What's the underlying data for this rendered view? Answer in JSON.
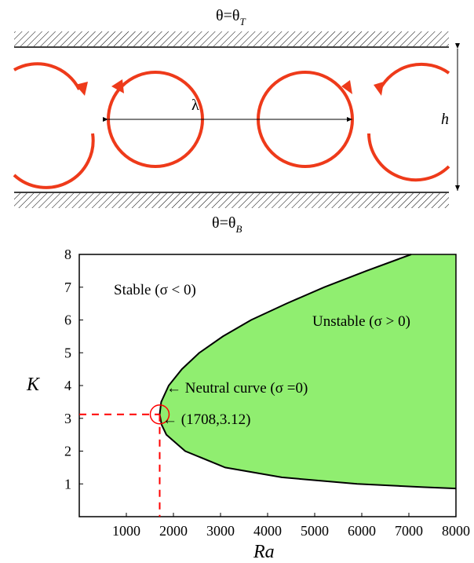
{
  "convection": {
    "top_label_base": "θ=θ",
    "top_label_sub": "T",
    "bottom_label_base": "θ=θ",
    "bottom_label_sub": "B",
    "wavelength_label": "λ",
    "height_label": "h",
    "roll_color": "#ee3a1a"
  },
  "chart_data": {
    "type": "area",
    "xlabel": "Ra",
    "ylabel": "K",
    "xlim": [
      0,
      8000
    ],
    "ylim": [
      0,
      8
    ],
    "x_ticks": [
      "1000",
      "2000",
      "3000",
      "4000",
      "5000",
      "6000",
      "7000",
      "8000"
    ],
    "y_ticks": [
      "1",
      "2",
      "3",
      "4",
      "5",
      "6",
      "7",
      "8"
    ],
    "fill_color": "#90ee70",
    "curve_color": "#000000",
    "marker_color": "#ff0000",
    "critical_point": {
      "Ra": 1708,
      "K": 3.12
    },
    "neutral_curve_points": [
      {
        "K": 0.86,
        "Ra": 8000
      },
      {
        "K": 0.9,
        "Ra": 7300
      },
      {
        "K": 1.0,
        "Ra": 5900
      },
      {
        "K": 1.2,
        "Ra": 4300
      },
      {
        "K": 1.5,
        "Ra": 3100
      },
      {
        "K": 2.0,
        "Ra": 2250
      },
      {
        "K": 2.5,
        "Ra": 1850
      },
      {
        "K": 2.8,
        "Ra": 1750
      },
      {
        "K": 3.12,
        "Ra": 1708
      },
      {
        "K": 3.5,
        "Ra": 1740
      },
      {
        "K": 4.0,
        "Ra": 1900
      },
      {
        "K": 4.5,
        "Ra": 2180
      },
      {
        "K": 5.0,
        "Ra": 2550
      },
      {
        "K": 5.5,
        "Ra": 3050
      },
      {
        "K": 6.0,
        "Ra": 3650
      },
      {
        "K": 6.5,
        "Ra": 4400
      },
      {
        "K": 7.0,
        "Ra": 5200
      },
      {
        "K": 7.5,
        "Ra": 6100
      },
      {
        "K": 8.0,
        "Ra": 7050
      }
    ],
    "annotations": {
      "stable": "Stable (σ < 0)",
      "unstable": "Unstable (σ > 0)",
      "neutral": "← Neutral curve (σ =0)",
      "critical": "← (1708,3.12)"
    }
  }
}
